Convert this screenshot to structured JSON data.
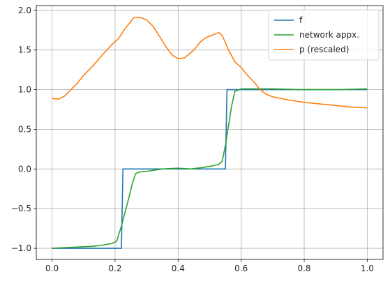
{
  "chart_data": {
    "type": "line",
    "title": "",
    "xlabel": "",
    "ylabel": "",
    "xlim": [
      -0.05,
      1.05
    ],
    "ylim": [
      -1.14,
      2.06
    ],
    "grid": true,
    "legend_position": "top-right",
    "x_ticks": [
      {
        "value": 0.0,
        "label": "0.0"
      },
      {
        "value": 0.2,
        "label": "0.2"
      },
      {
        "value": 0.4,
        "label": "0.4"
      },
      {
        "value": 0.6,
        "label": "0.6"
      },
      {
        "value": 0.8,
        "label": "0.8"
      },
      {
        "value": 1.0,
        "label": "1.0"
      }
    ],
    "y_ticks": [
      {
        "value": -1.0,
        "label": "−1.0"
      },
      {
        "value": -0.5,
        "label": "−0.5"
      },
      {
        "value": 0.0,
        "label": "0.0"
      },
      {
        "value": 0.5,
        "label": "0.5"
      },
      {
        "value": 1.0,
        "label": "1.0"
      },
      {
        "value": 1.5,
        "label": "1.5"
      },
      {
        "value": 2.0,
        "label": "2.0"
      }
    ],
    "series": [
      {
        "name": "f",
        "color": "#1f77b4",
        "points": [
          [
            0.0,
            -1.0
          ],
          [
            0.22,
            -1.0
          ],
          [
            0.225,
            0.0
          ],
          [
            0.55,
            0.0
          ],
          [
            0.555,
            1.0
          ],
          [
            1.0,
            1.0
          ]
        ]
      },
      {
        "name": "network appx.",
        "color": "#2ca02c",
        "points": [
          [
            0.0,
            -1.0
          ],
          [
            0.05,
            -0.99
          ],
          [
            0.1,
            -0.98
          ],
          [
            0.13,
            -0.975
          ],
          [
            0.16,
            -0.96
          ],
          [
            0.19,
            -0.94
          ],
          [
            0.205,
            -0.91
          ],
          [
            0.22,
            -0.72
          ],
          [
            0.24,
            -0.42
          ],
          [
            0.255,
            -0.18
          ],
          [
            0.265,
            -0.06
          ],
          [
            0.275,
            -0.04
          ],
          [
            0.3,
            -0.03
          ],
          [
            0.35,
            0.0
          ],
          [
            0.4,
            0.01
          ],
          [
            0.44,
            0.0
          ],
          [
            0.48,
            0.02
          ],
          [
            0.51,
            0.04
          ],
          [
            0.53,
            0.06
          ],
          [
            0.54,
            0.1
          ],
          [
            0.55,
            0.3
          ],
          [
            0.56,
            0.55
          ],
          [
            0.57,
            0.8
          ],
          [
            0.58,
            0.98
          ],
          [
            0.6,
            1.01
          ],
          [
            0.7,
            1.01
          ],
          [
            0.8,
            1.0
          ],
          [
            0.9,
            1.0
          ],
          [
            1.0,
            1.01
          ]
        ]
      },
      {
        "name": "p (rescaled)",
        "color": "#ff7f0e",
        "points": [
          [
            0.0,
            0.89
          ],
          [
            0.02,
            0.88
          ],
          [
            0.04,
            0.92
          ],
          [
            0.06,
            1.0
          ],
          [
            0.08,
            1.08
          ],
          [
            0.1,
            1.18
          ],
          [
            0.13,
            1.3
          ],
          [
            0.16,
            1.44
          ],
          [
            0.19,
            1.57
          ],
          [
            0.21,
            1.64
          ],
          [
            0.23,
            1.76
          ],
          [
            0.25,
            1.86
          ],
          [
            0.26,
            1.91
          ],
          [
            0.28,
            1.91
          ],
          [
            0.3,
            1.88
          ],
          [
            0.32,
            1.8
          ],
          [
            0.34,
            1.68
          ],
          [
            0.36,
            1.55
          ],
          [
            0.38,
            1.44
          ],
          [
            0.4,
            1.39
          ],
          [
            0.42,
            1.4
          ],
          [
            0.45,
            1.5
          ],
          [
            0.47,
            1.6
          ],
          [
            0.49,
            1.66
          ],
          [
            0.51,
            1.69
          ],
          [
            0.53,
            1.72
          ],
          [
            0.54,
            1.68
          ],
          [
            0.56,
            1.5
          ],
          [
            0.58,
            1.35
          ],
          [
            0.6,
            1.28
          ],
          [
            0.62,
            1.18
          ],
          [
            0.64,
            1.1
          ],
          [
            0.66,
            1.0
          ],
          [
            0.68,
            0.94
          ],
          [
            0.7,
            0.91
          ],
          [
            0.75,
            0.87
          ],
          [
            0.8,
            0.84
          ],
          [
            0.85,
            0.82
          ],
          [
            0.9,
            0.8
          ],
          [
            0.95,
            0.78
          ],
          [
            1.0,
            0.77
          ]
        ]
      }
    ]
  }
}
